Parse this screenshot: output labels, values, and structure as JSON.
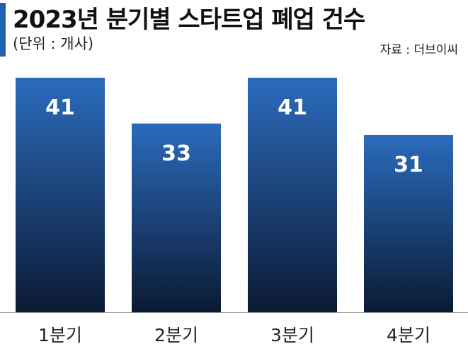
{
  "header": {
    "title": "2023년 분기별 스타트업 폐업 건수",
    "unit": "(단위 : 개사)",
    "source": "자료 : 더브이씨"
  },
  "colors": {
    "accent": "#1f62b0",
    "bar_top": "#2b6bbd",
    "bar_bottom": "#0b1a33",
    "label": "#ffffff",
    "baseline": "#999999"
  },
  "chart_data": {
    "type": "bar",
    "categories": [
      "1분기",
      "2분기",
      "3분기",
      "4분기"
    ],
    "values": [
      41,
      33,
      41,
      31
    ],
    "title": "2023년 분기별 스타트업 폐업 건수",
    "xlabel": "",
    "ylabel": "",
    "ylim": [
      0,
      41
    ],
    "data_labels": [
      "41",
      "33",
      "41",
      "31"
    ],
    "grid": false
  }
}
